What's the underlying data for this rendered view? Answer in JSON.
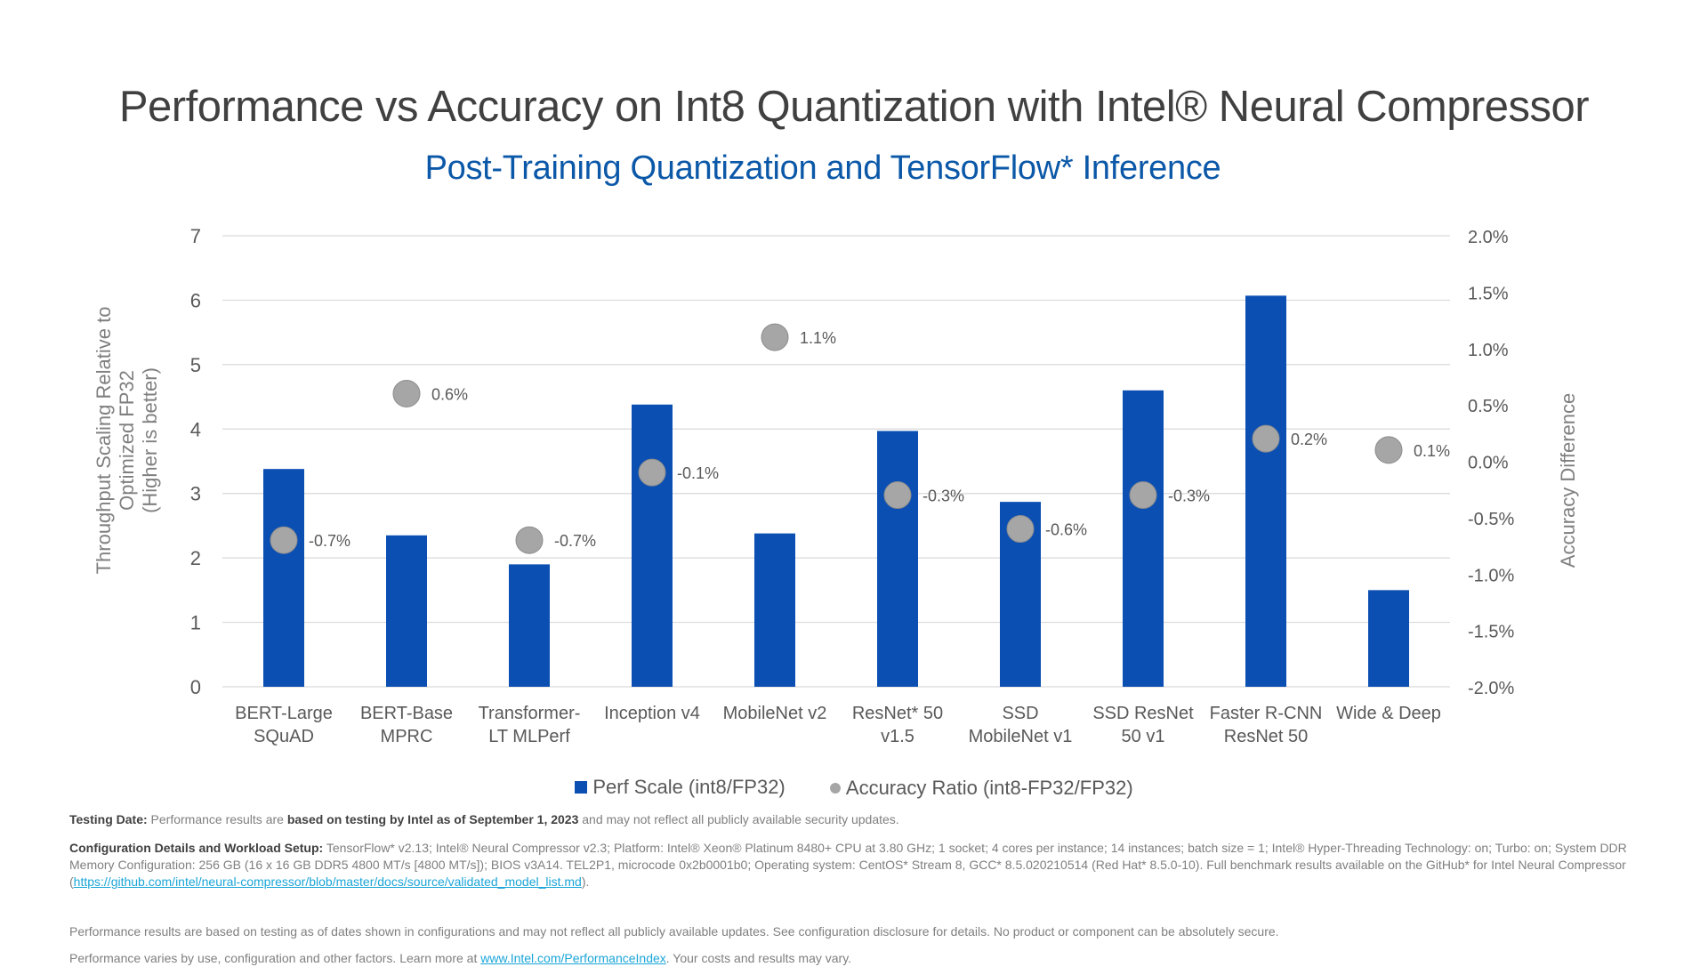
{
  "title": "Performance vs Accuracy on Int8 Quantization with Intel® Neural Compressor",
  "subtitle": "Post-Training Quantization and TensorFlow* Inference",
  "colors": {
    "bar": "#0b4fb3",
    "dot": "#a6a6a6",
    "subtitle": "#0b58a8",
    "grid": "#d9d9d9"
  },
  "chart_data": {
    "type": "bar",
    "categories": [
      [
        "BERT-Large",
        "SQuAD"
      ],
      [
        "BERT-Base",
        "MPRC"
      ],
      [
        "Transformer-",
        "LT MLPerf"
      ],
      [
        "Inception v4"
      ],
      [
        "MobileNet v2"
      ],
      [
        "ResNet* 50",
        "v1.5"
      ],
      [
        "SSD",
        "MobileNet v1"
      ],
      [
        "SSD ResNet",
        "50 v1"
      ],
      [
        "Faster R-CNN",
        "ResNet 50"
      ],
      [
        "Wide & Deep"
      ]
    ],
    "series": [
      {
        "name": "Perf Scale (int8/FP32)",
        "axis": "left",
        "type": "bar",
        "values": [
          3.38,
          2.35,
          1.9,
          4.38,
          2.38,
          3.97,
          2.87,
          4.6,
          6.07,
          1.5
        ]
      },
      {
        "name": "Accuracy Ratio (int8-FP32/FP32)",
        "axis": "right",
        "type": "scatter",
        "values": [
          -0.7,
          0.6,
          -0.7,
          -0.1,
          1.1,
          -0.3,
          -0.6,
          -0.3,
          0.2,
          0.1
        ],
        "labels": [
          "-0.7%",
          "0.6%",
          "-0.7%",
          "-0.1%",
          "1.1%",
          "-0.3%",
          "-0.6%",
          "-0.3%",
          "0.2%",
          "0.1%"
        ]
      }
    ],
    "y_left": {
      "label": [
        "Throughput Scaling Relative to",
        "Optimized FP32",
        "(Higher is better)"
      ],
      "min": 0,
      "max": 7,
      "ticks": [
        0,
        1,
        2,
        3,
        4,
        5,
        6,
        7
      ]
    },
    "y_right": {
      "label": "Accuracy Difference",
      "min": -2.0,
      "max": 2.0,
      "ticks": [
        -2.0,
        -1.5,
        -1.0,
        -0.5,
        0.0,
        0.5,
        1.0,
        1.5,
        2.0
      ],
      "tick_labels": [
        "-2.0%",
        "-1.5%",
        "-1.0%",
        "-0.5%",
        "0.0%",
        "0.5%",
        "1.0%",
        "1.5%",
        "2.0%"
      ]
    },
    "grid": true,
    "legend_position": "bottom"
  },
  "footer": {
    "testing_date_label": "Testing Date:",
    "testing_date_text_1": "Performance results are ",
    "testing_date_bold": "based on testing by Intel as of September 1, 2023",
    "testing_date_text_2": " and may not reflect all publicly available security updates.",
    "config_label": "Configuration Details and Workload Setup:",
    "config_text": "TensorFlow* v2.13; Intel® Neural Compressor v2.3; Platform: Intel® Xeon® Platinum 8480+ CPU at 3.80 GHz; 1 socket; 4 cores per instance; 14 instances; batch size = 1; Intel® Hyper-Threading Technology: on; Turbo: on; System DDR Memory Configuration: 256 GB (16 x 16 GB DDR5 4800 MT/s [4800 MT/s]); BIOS v3A14. TEL2P1, microcode 0x2b0001b0; Operating system: CentOS* Stream 8, GCC* 8.5.020210514 (Red Hat* 8.5.0-10). Full benchmark results available on the GitHub* for Intel Neural Compressor (",
    "config_link": "https://github.com/intel/neural-compressor/blob/master/docs/source/validated_model_list.md",
    "config_end": ").",
    "disclaimer_1": "Performance results are based on testing as of dates shown in configurations and may not reflect all publicly available updates. See configuration disclosure for details. No product or component can be absolutely secure.",
    "disclaimer_2_a": "Performance varies by use, configuration and other factors. Learn more at ",
    "disclaimer_2_link": "www.Intel.com/PerformanceIndex",
    "disclaimer_2_b": ". Your costs and results may vary."
  }
}
